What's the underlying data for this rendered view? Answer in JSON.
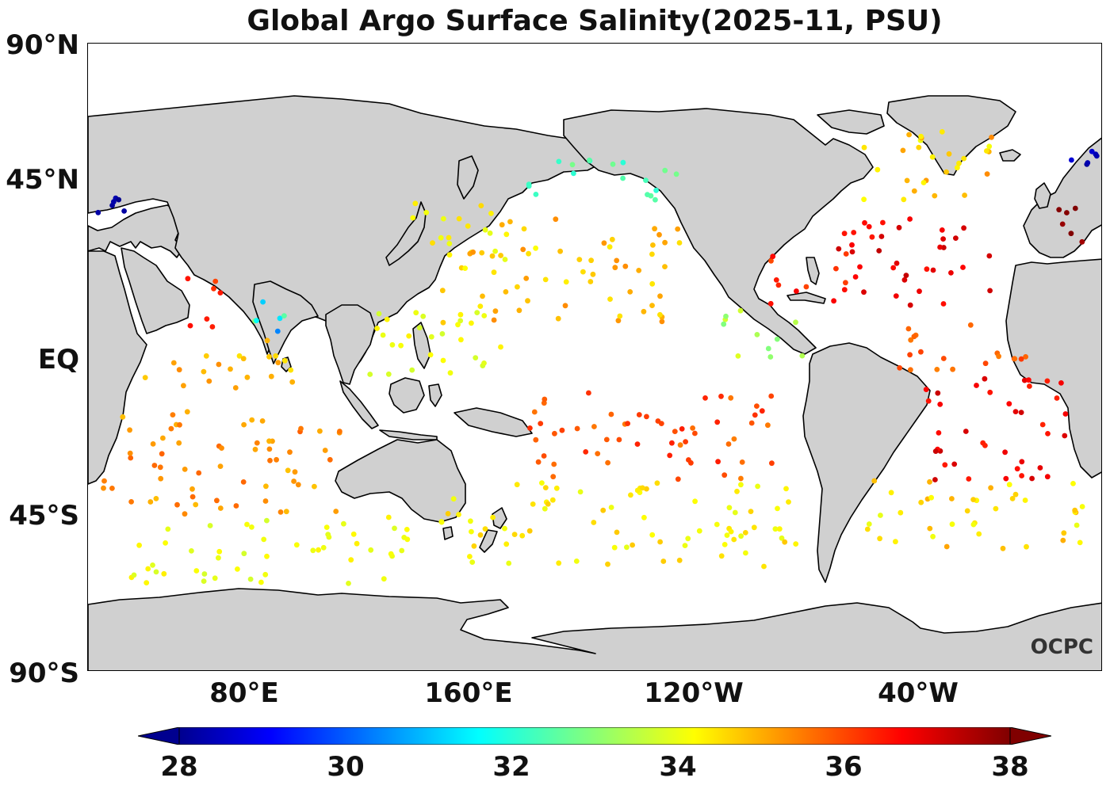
{
  "title": "Global Argo Surface Salinity(2025-11, PSU)",
  "logo_text": "OCPC",
  "colors": {
    "land": "#d0d0d0",
    "coast": "#000000",
    "ocean": "#ffffff"
  },
  "axes": {
    "y_ticks": [
      {
        "label": "90°N",
        "lat": 90
      },
      {
        "label": "45°N",
        "lat": 45
      },
      {
        "label": "EQ",
        "lat": 0
      },
      {
        "label": "45°S",
        "lat": -45
      },
      {
        "label": "90°S",
        "lat": -90
      }
    ],
    "x_ticks": [
      {
        "label": "80°E",
        "lon": 80
      },
      {
        "label": "160°E",
        "lon": 160
      },
      {
        "label": "120°W",
        "lon": 240
      },
      {
        "label": "40°W",
        "lon": 320
      }
    ],
    "lon_range": [
      25,
      385
    ],
    "lat_range": [
      -90,
      90
    ]
  },
  "colorbar": {
    "ticks": [
      "28",
      "30",
      "32",
      "34",
      "36",
      "38"
    ],
    "min": 28,
    "max": 38,
    "extend": "both",
    "colormap": "jet"
  },
  "chart_data": {
    "type": "scatter",
    "title": "Global Argo Surface Salinity(2025-11, PSU)",
    "x_unit": "longitude (°E, 0-360)",
    "y_unit": "latitude",
    "value_unit": "PSU",
    "clusters": [
      {
        "region": "Arabian Sea",
        "lon": [
          58,
          72
        ],
        "lat": [
          5,
          25
        ],
        "psu": [
          36.0,
          36.8
        ]
      },
      {
        "region": "Bay of Bengal",
        "lon": [
          80,
          95
        ],
        "lat": [
          5,
          20
        ],
        "psu": [
          30.0,
          33.5
        ]
      },
      {
        "region": "Equatorial Indian Ocean",
        "lon": [
          45,
          100
        ],
        "lat": [
          -10,
          5
        ],
        "psu": [
          34.5,
          35.5
        ]
      },
      {
        "region": "South Indian Ocean",
        "lon": [
          30,
          115
        ],
        "lat": [
          -45,
          -15
        ],
        "psu": [
          34.8,
          35.8
        ]
      },
      {
        "region": "Southern Indian Ocean",
        "lon": [
          40,
          140
        ],
        "lat": [
          -65,
          -45
        ],
        "psu": [
          33.8,
          34.4
        ]
      },
      {
        "region": "Northwest Pacific",
        "lon": [
          140,
          175
        ],
        "lat": [
          25,
          45
        ],
        "psu": [
          34.0,
          34.8
        ]
      },
      {
        "region": "Gulf of Alaska / Subarctic Pacific",
        "lon": [
          180,
          235
        ],
        "lat": [
          45,
          58
        ],
        "psu": [
          32.0,
          33.0
        ]
      },
      {
        "region": "North Pacific Subtropics",
        "lon": [
          150,
          235
        ],
        "lat": [
          10,
          40
        ],
        "psu": [
          34.2,
          35.4
        ]
      },
      {
        "region": "Warm Pool",
        "lon": [
          125,
          180
        ],
        "lat": [
          -5,
          15
        ],
        "psu": [
          33.8,
          34.4
        ]
      },
      {
        "region": "South Pacific Subtropics",
        "lon": [
          180,
          270
        ],
        "lat": [
          -35,
          -10
        ],
        "psu": [
          35.5,
          36.5
        ]
      },
      {
        "region": "South Pacific",
        "lon": [
          150,
          280
        ],
        "lat": [
          -60,
          -35
        ],
        "psu": [
          34.0,
          34.8
        ]
      },
      {
        "region": "Eastern Tropical Pacific",
        "lon": [
          250,
          280
        ],
        "lat": [
          0,
          15
        ],
        "psu": [
          33.0,
          34.0
        ]
      },
      {
        "region": "Gulf of Mexico / Caribbean",
        "lon": [
          262,
          300
        ],
        "lat": [
          15,
          30
        ],
        "psu": [
          36.0,
          36.8
        ]
      },
      {
        "region": "North Atlantic Subtropics",
        "lon": [
          290,
          345
        ],
        "lat": [
          15,
          40
        ],
        "psu": [
          36.5,
          37.4
        ]
      },
      {
        "region": "Subpolar North Atlantic",
        "lon": [
          300,
          355
        ],
        "lat": [
          45,
          65
        ],
        "psu": [
          34.0,
          35.4
        ]
      },
      {
        "region": "Tropical Atlantic",
        "lon": [
          310,
          360
        ],
        "lat": [
          -5,
          10
        ],
        "psu": [
          35.5,
          36.2
        ]
      },
      {
        "region": "South Atlantic Subtropics",
        "lon": [
          320,
          372
        ],
        "lat": [
          -35,
          -5
        ],
        "psu": [
          36.4,
          37.3
        ]
      },
      {
        "region": "South Atlantic",
        "lon": [
          300,
          380
        ],
        "lat": [
          -55,
          -35
        ],
        "psu": [
          34.0,
          35.2
        ]
      },
      {
        "region": "Mediterranean",
        "lon": [
          363,
          380
        ],
        "lat": [
          33,
          43
        ],
        "psu": [
          37.6,
          38.2
        ]
      },
      {
        "region": "Black Sea",
        "lon": [
          28,
          40
        ],
        "lat": [
          41,
          46
        ],
        "psu": [
          28.0,
          28.5
        ]
      },
      {
        "region": "Baltic",
        "lon": [
          372,
          385
        ],
        "lat": [
          54,
          62
        ],
        "psu": [
          28.0,
          29.0
        ]
      }
    ]
  }
}
